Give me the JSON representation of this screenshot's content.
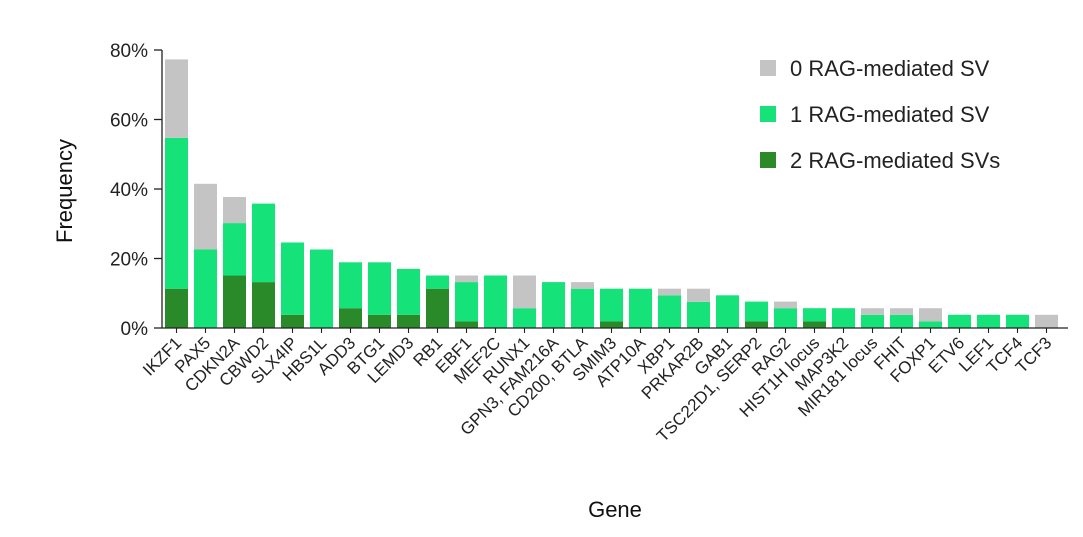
{
  "chart_data": {
    "type": "bar",
    "stacked": true,
    "xlabel": "Gene",
    "ylabel": "Frequency",
    "ylim": [
      0,
      80
    ],
    "yticks": [
      "0%",
      "20%",
      "40%",
      "60%",
      "80%"
    ],
    "yticks_values": [
      0,
      20,
      40,
      60,
      80
    ],
    "legend_position": "top-right",
    "grid": false,
    "categories": [
      "IKZF1",
      "PAX5",
      "CDKN2A",
      "CBWD2",
      "SLX4IP",
      "HBS1L",
      "ADD3",
      "BTG1",
      "LEMD3",
      "RB1",
      "EBF1",
      "MEF2C",
      "RUNX1",
      "GPN3, FAM216A",
      "CD200, BTLA",
      "SMIM3",
      "ATP10A",
      "XBP1",
      "PRKAR2B",
      "GAB1",
      "TSC22D1, SERP2",
      "RAG2",
      "HIST1H locus",
      "MAP3K2",
      "MIR181 locus",
      "FHIT",
      "FOXP1",
      "ETV6",
      "LEF1",
      "TCF4",
      "TCF3"
    ],
    "series": [
      {
        "name": "2 RAG-mediated SVs",
        "color": "#2a8a2a",
        "values": [
          11.3,
          0,
          15.1,
          13.2,
          3.8,
          0,
          5.7,
          3.8,
          3.8,
          11.3,
          1.9,
          0,
          0,
          0,
          0,
          1.9,
          0,
          0,
          0,
          0,
          1.9,
          0,
          1.9,
          0,
          0,
          0,
          0,
          0,
          0,
          0,
          0
        ]
      },
      {
        "name": "1 RAG-mediated SV",
        "color": "#16e27a",
        "values": [
          43.4,
          22.6,
          15.1,
          22.6,
          20.8,
          22.6,
          13.2,
          15.1,
          13.2,
          3.8,
          11.3,
          15.1,
          5.7,
          13.2,
          11.3,
          9.4,
          11.3,
          9.4,
          7.5,
          9.4,
          5.7,
          5.7,
          3.8,
          5.7,
          3.8,
          3.8,
          1.9,
          3.8,
          3.8,
          3.8,
          0
        ]
      },
      {
        "name": "0 RAG-mediated SV",
        "color": "#c4c4c4",
        "values": [
          22.6,
          18.9,
          7.5,
          0,
          0,
          0,
          0,
          0,
          0,
          0,
          1.9,
          0,
          9.4,
          0,
          1.9,
          0,
          0,
          1.9,
          3.8,
          0,
          0,
          1.9,
          0,
          0,
          1.9,
          1.9,
          3.8,
          0,
          0,
          0,
          3.8
        ]
      }
    ],
    "legend_order": [
      "0 RAG-mediated SV",
      "1 RAG-mediated SV",
      "2 RAG-mediated SVs"
    ]
  }
}
